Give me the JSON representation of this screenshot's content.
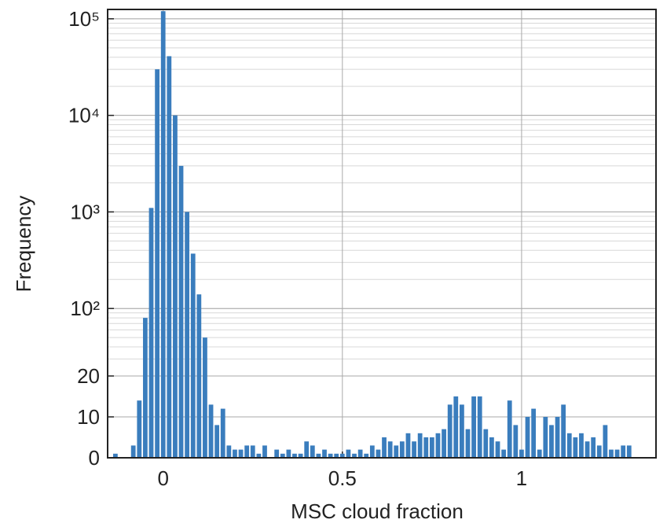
{
  "chart_data": {
    "type": "histogram",
    "xlabel": "MSC cloud fraction",
    "ylabel": "Frequency",
    "bins": [
      -0.1417,
      -0.125,
      -0.1083,
      -0.0917,
      -0.075,
      -0.0583,
      -0.0417,
      -0.025,
      -0.0083,
      0.0083,
      0.025,
      0.0417,
      0.0583,
      0.075,
      0.0917,
      0.1083,
      0.125,
      0.1417,
      0.1583,
      0.175,
      0.1917,
      0.2083,
      0.225,
      0.2417,
      0.2583,
      0.275,
      0.2917,
      0.3083,
      0.325,
      0.3417,
      0.3583,
      0.375,
      0.3917,
      0.4083,
      0.425,
      0.4417,
      0.4583,
      0.475,
      0.4917,
      0.5083,
      0.525,
      0.5417,
      0.5583,
      0.575,
      0.5917,
      0.6083,
      0.625,
      0.6417,
      0.6583,
      0.675,
      0.6917,
      0.7083,
      0.725,
      0.7417,
      0.7583,
      0.775,
      0.7917,
      0.8083,
      0.825,
      0.8417,
      0.8583,
      0.875,
      0.8917,
      0.9083,
      0.925,
      0.9417,
      0.9583,
      0.975,
      0.9917,
      1.0083,
      1.025,
      1.0417,
      1.0583,
      1.075,
      1.0917,
      1.1083,
      1.125,
      1.1417,
      1.1583,
      1.175,
      1.1917,
      1.2083,
      1.225,
      1.2417,
      1.2583,
      1.275,
      1.2917,
      1.3083
    ],
    "values": [
      1,
      0,
      0,
      3,
      14,
      80,
      1100,
      30000,
      120000,
      41000,
      10000,
      3000,
      1000,
      370,
      140,
      50,
      13,
      8,
      12,
      3,
      2,
      2,
      3,
      3,
      1,
      3,
      0,
      2,
      1,
      2,
      1,
      1,
      4,
      3,
      1,
      2,
      1,
      1,
      1,
      2,
      1,
      2,
      1,
      3,
      2,
      5,
      4,
      3,
      4,
      6,
      4,
      6,
      5,
      5,
      6,
      7,
      13,
      15,
      13,
      7,
      15,
      15,
      7,
      5,
      4,
      2,
      14,
      8,
      2,
      10,
      12,
      2,
      10,
      8,
      10,
      13,
      6,
      5,
      6,
      4,
      5,
      3,
      8,
      2,
      2,
      3,
      3
    ],
    "color": "#3a7dbd",
    "xlim": [
      -0.155,
      1.375
    ],
    "xticks": [
      0,
      0.5,
      1
    ],
    "ylim": [
      0,
      125000
    ],
    "yscale": "symlog",
    "yticks": [
      0,
      10,
      20,
      {
        "value": 100,
        "label": "10²"
      },
      {
        "value": 1000,
        "label": "10³"
      },
      {
        "value": 10000,
        "label": "10⁴"
      },
      {
        "value": 100000,
        "label": "10⁵"
      }
    ],
    "grid": true,
    "minor_grid": true
  }
}
